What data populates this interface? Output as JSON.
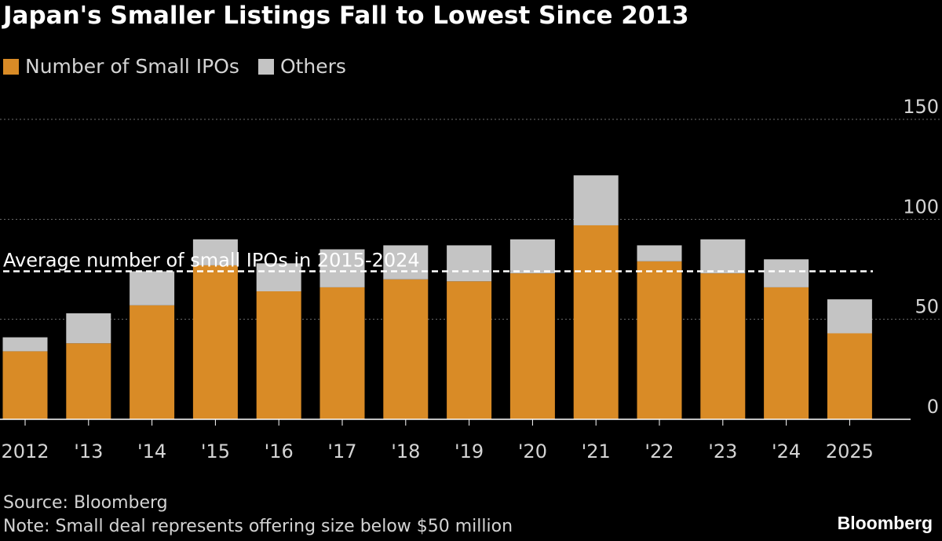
{
  "title": "Japan's Smaller Listings Fall to Lowest Since 2013",
  "legend": [
    {
      "label": "Number of Small IPOs",
      "color": "#d98b26"
    },
    {
      "label": "Others",
      "color": "#c4c4c4"
    }
  ],
  "source": "Source: Bloomberg",
  "note": "Note: Small deal represents offering size below $50 million",
  "brand": "Bloomberg",
  "colors": {
    "background": "#000000",
    "small": "#d98b26",
    "others": "#c4c4c4",
    "grid": "#6e6e6e",
    "text": "#d4d4d4"
  },
  "chart_data": {
    "type": "bar",
    "stacked": true,
    "title": "Japan's Smaller Listings Fall to Lowest Since 2013",
    "categories": [
      "2012",
      "'13",
      "'14",
      "'15",
      "'16",
      "'17",
      "'18",
      "'19",
      "'20",
      "'21",
      "'22",
      "'23",
      "'24",
      "2025"
    ],
    "series": [
      {
        "name": "Number of Small IPOs",
        "values": [
          34,
          38,
          57,
          77,
          64,
          66,
          70,
          69,
          73,
          97,
          79,
          73,
          66,
          43
        ]
      },
      {
        "name": "Others",
        "values": [
          7,
          15,
          17,
          13,
          14,
          19,
          17,
          18,
          17,
          25,
          8,
          17,
          14,
          17
        ]
      }
    ],
    "ylim": [
      0,
      150
    ],
    "yticks": [
      0,
      50,
      100,
      150
    ],
    "grid": true,
    "legend_position": "top-left",
    "annotations": [
      {
        "type": "hline",
        "value": 74,
        "label": "Average number of small IPOs in 2015-2024"
      }
    ],
    "xlabel": "",
    "ylabel": ""
  }
}
